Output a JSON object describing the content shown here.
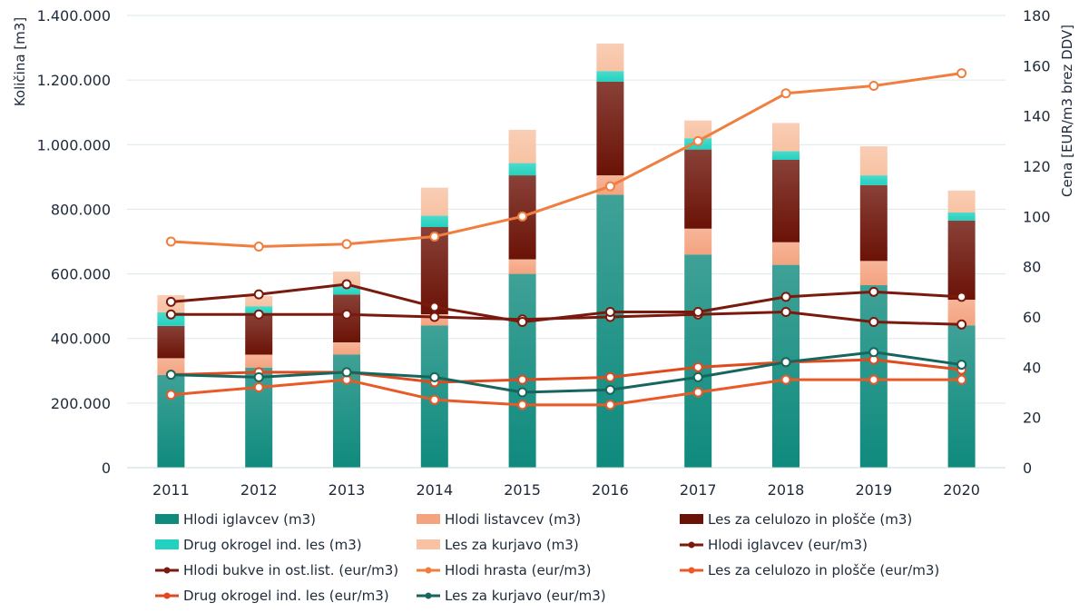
{
  "chart_data": {
    "type": "bar",
    "categories": [
      "2011",
      "2012",
      "2013",
      "2014",
      "2015",
      "2016",
      "2017",
      "2018",
      "2019",
      "2020"
    ],
    "y_left": {
      "label": "Količina [m3]",
      "range": [
        0,
        1400000
      ],
      "ticks": [
        "0",
        "200.000",
        "400.000",
        "600.000",
        "800.000",
        "1.000.000",
        "1.200.000",
        "1.400.000"
      ]
    },
    "y_right": {
      "label": "Cena [EUR/m3 brez DDV]",
      "range": [
        0,
        180
      ],
      "ticks": [
        "0",
        "20",
        "40",
        "60",
        "80",
        "100",
        "120",
        "140",
        "160",
        "180"
      ]
    },
    "bar_series": [
      {
        "name": "Hlodi iglavcev (m3)",
        "color": "#0f8a7d",
        "values": [
          287000,
          310000,
          350000,
          440000,
          600000,
          845000,
          660000,
          628000,
          565000,
          440000
        ]
      },
      {
        "name": "Hlodi listavcev (m3)",
        "color": "#f4a37f",
        "values": [
          52000,
          40000,
          38000,
          35000,
          45000,
          60000,
          80000,
          70000,
          75000,
          80000
        ]
      },
      {
        "name": "Les za celulozo in plošče (m3)",
        "color": "#6b1206",
        "values": [
          100000,
          125000,
          148000,
          270000,
          260000,
          290000,
          245000,
          255000,
          235000,
          245000
        ]
      },
      {
        "name": "Drug okrogel ind. les (m3)",
        "color": "#22d1bf",
        "values": [
          42000,
          25000,
          25000,
          35000,
          38000,
          33000,
          35000,
          27000,
          30000,
          25000
        ]
      },
      {
        "name": "Les za kurjavo (m3)",
        "color": "#f8c2a3",
        "values": [
          53000,
          32000,
          46000,
          87000,
          103000,
          85000,
          55000,
          87000,
          90000,
          68000
        ]
      }
    ],
    "line_series": [
      {
        "name": "Hlodi iglavcev (eur/m3)",
        "color": "#7a1a0e",
        "values": [
          61,
          61,
          61,
          60,
          59,
          60,
          61,
          62,
          58,
          57
        ]
      },
      {
        "name": "Hlodi bukve in ost.list. (eur/m3)",
        "color": "#7a1a0e",
        "values": [
          66,
          69,
          73,
          64,
          58,
          62,
          62,
          68,
          70,
          68
        ]
      },
      {
        "name": "Hlodi hrasta (eur/m3)",
        "color": "#f07f3f",
        "values": [
          90,
          88,
          89,
          92,
          100,
          112,
          130,
          149,
          152,
          157
        ]
      },
      {
        "name": "Les za celulozo in plošče (eur/m3)",
        "color": "#ea5a28",
        "values": [
          29,
          32,
          35,
          27,
          25,
          25,
          30,
          35,
          35,
          35
        ]
      },
      {
        "name": "Drug okrogel ind. les (eur/m3)",
        "color": "#e04a1f",
        "values": [
          37,
          38,
          38,
          34,
          35,
          36,
          40,
          42,
          43,
          39
        ]
      },
      {
        "name": "Les za kurjavo (eur/m3)",
        "color": "#17665e",
        "values": [
          37,
          36,
          38,
          36,
          30,
          31,
          36,
          42,
          46,
          41
        ]
      }
    ],
    "legend": [
      {
        "label": "Hlodi iglavcev (m3)",
        "kind": "bar",
        "color": "#0f8a7d"
      },
      {
        "label": "Hlodi listavcev (m3)",
        "kind": "bar",
        "color": "#f4a37f"
      },
      {
        "label": "Les za celulozo in plošče (m3)",
        "kind": "bar",
        "color": "#6b1206"
      },
      {
        "label": "Drug okrogel ind. les (m3)",
        "kind": "bar",
        "color": "#22d1bf"
      },
      {
        "label": "Les za kurjavo (m3)",
        "kind": "bar",
        "color": "#f8c2a3"
      },
      {
        "label": "Hlodi iglavcev (eur/m3)",
        "kind": "line",
        "color": "#7a1a0e"
      },
      {
        "label": "Hlodi bukve in ost.list. (eur/m3)",
        "kind": "line",
        "color": "#7a1a0e"
      },
      {
        "label": "Hlodi hrasta (eur/m3)",
        "kind": "line",
        "color": "#f07f3f"
      },
      {
        "label": "Les za celulozo in plošče (eur/m3)",
        "kind": "line",
        "color": "#ea5a28"
      },
      {
        "label": "Drug okrogel ind. les (eur/m3)",
        "kind": "line",
        "color": "#e04a1f"
      },
      {
        "label": "Les za kurjavo (eur/m3)",
        "kind": "line",
        "color": "#17665e"
      }
    ],
    "grid": true,
    "legend_position": "bottom"
  }
}
